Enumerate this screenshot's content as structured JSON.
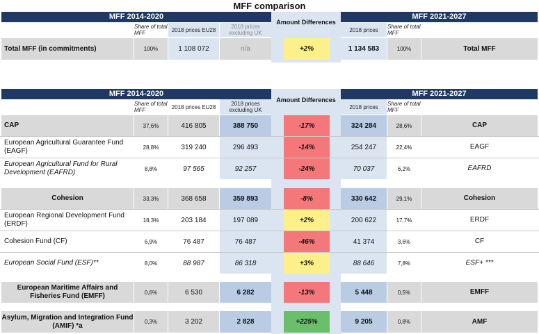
{
  "title": "MFF comparison",
  "headers": {
    "left_band": "MFF 2014-2020",
    "right_band": "MFF 2021-2027",
    "share": "Share of total MFF",
    "prices_eu28": "2018 prices EU28",
    "prices_ex_uk": "2018 prices excluding UK",
    "amount_diff": "Amount Differences",
    "prices_2018": "2018 prices"
  },
  "total_row": {
    "label": "Total MFF (in commitments)",
    "share_old": "100%",
    "eu28": "1 108 072",
    "ex_uk": "n/a",
    "diff": "+2%",
    "new_value": "1 134 583",
    "share_new": "100%",
    "right_label": "Total MFF"
  },
  "rows": [
    {
      "label": "CAP",
      "share_old": "37,6%",
      "eu28": "416 805",
      "ex_uk": "388 750",
      "diff": "-17%",
      "new_value": "324 284",
      "share_new": "28,6%",
      "right_label": "CAP"
    },
    {
      "label": "European Agricultural Guarantee Fund (EAGF)",
      "share_old": "28,8%",
      "eu28": "319 240",
      "ex_uk": "296 493",
      "diff": "-14%",
      "new_value": "254 247",
      "share_new": "22,4%",
      "right_label": "EAGF"
    },
    {
      "label": "European Agricultural Fund for Rural Development (EAFRD)",
      "share_old": "8,8%",
      "eu28": "97 565",
      "ex_uk": "92 257",
      "diff": "-24%",
      "new_value": "70 037",
      "share_new": "6,2%",
      "right_label": "EAFRD"
    },
    {
      "label": "Cohesion",
      "share_old": "33,3%",
      "eu28": "368 658",
      "ex_uk": "359 893",
      "diff": "-8%",
      "new_value": "330 642",
      "share_new": "29,1%",
      "right_label": "Cohesion"
    },
    {
      "label": "European Regional Development Fund (ERDF)",
      "share_old": "18,3%",
      "eu28": "203 184",
      "ex_uk": "197 089",
      "diff": "+2%",
      "new_value": "200 622",
      "share_new": "17,7%",
      "right_label": "ERDF"
    },
    {
      "label": "Cohesion Fund (CF)",
      "share_old": "6,9%",
      "eu28": "76 487",
      "ex_uk": "76 487",
      "diff": "-46%",
      "new_value": "41 374",
      "share_new": "3,6%",
      "right_label": "CF"
    },
    {
      "label": "European Social Fund (ESF)**",
      "share_old": "8,0%",
      "eu28": "88 987",
      "ex_uk": "86 318",
      "diff": "+3%",
      "new_value": "88 646",
      "share_new": "7,8%",
      "right_label": "ESF+ ***"
    },
    {
      "label": "European Maritime Affairs and Fisheries Fund (EMFF)",
      "share_old": "0,6%",
      "eu28": "6 530",
      "ex_uk": "6 282",
      "diff": "-13%",
      "new_value": "5 448",
      "share_new": "0,5%",
      "right_label": "EMFF"
    },
    {
      "label": "Asylum, Migration and Integration Fund (AMIF) *a",
      "share_old": "0,3%",
      "eu28": "3 202",
      "ex_uk": "2 828",
      "diff": "+225%",
      "new_value": "9 205",
      "share_new": "0,8%",
      "right_label": "AMF"
    }
  ],
  "colors": {
    "band": "#1f3864",
    "light_blue": "#dbe5f1",
    "mid_blue": "#b9cce4",
    "gray": "#d9d9d9",
    "red": "#f4787a",
    "yellow": "#fdf08a",
    "green": "#6bbf6b"
  }
}
